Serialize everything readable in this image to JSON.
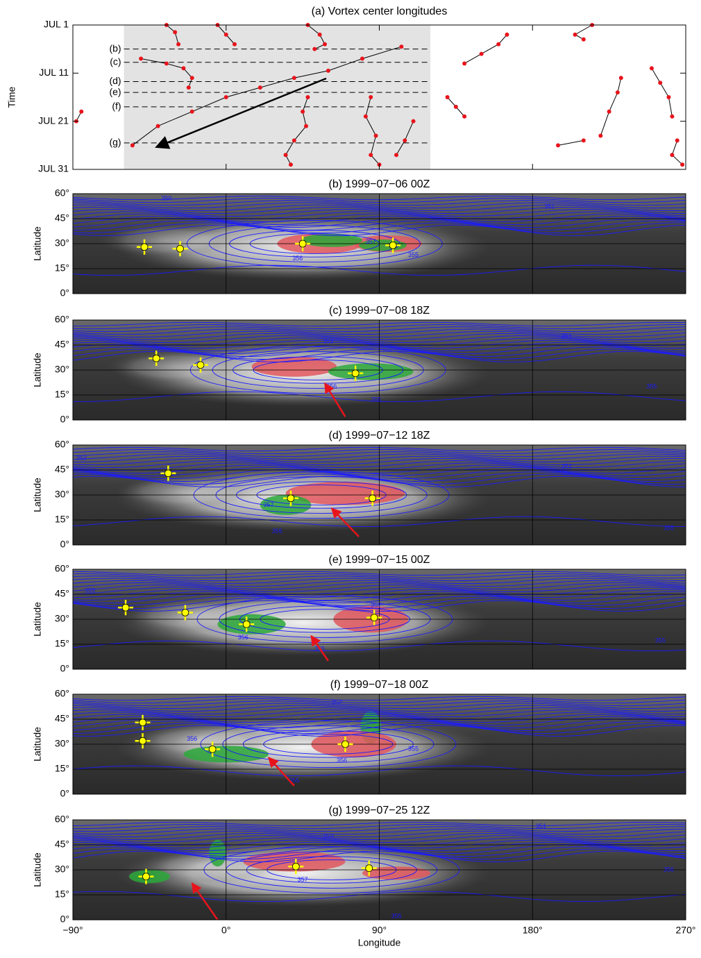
{
  "chart_data": [
    {
      "type": "scatter",
      "title": "(a) Vortex center longitudes",
      "y_label": "Time",
      "xlim": [
        -90,
        270
      ],
      "xticks": [
        -90,
        0,
        90,
        180,
        270
      ],
      "ylim": [
        31,
        1
      ],
      "yticks": [
        {
          "value": 1,
          "label": "JUL 1"
        },
        {
          "value": 11,
          "label": "JUL 11"
        },
        {
          "value": 21,
          "label": "JUL 21"
        },
        {
          "value": 31,
          "label": "JUL 31"
        }
      ],
      "shaded_range": [
        -60,
        120
      ],
      "color": "#e8141c",
      "line_color": "#000000",
      "annotations": [
        {
          "label": "(b)",
          "value": 6
        },
        {
          "label": "(c)",
          "value": 8.75
        },
        {
          "label": "(d)",
          "value": 12.75
        },
        {
          "label": "(e)",
          "value": 15
        },
        {
          "label": "(f)",
          "value": 18
        },
        {
          "label": "(g)",
          "value": 25.5
        }
      ],
      "tracks": [
        {
          "x": [
            103,
            80,
            60,
            40,
            20,
            0,
            -20,
            -40,
            -55
          ],
          "y": [
            5.5,
            8,
            10.5,
            12,
            14,
            16,
            19,
            22,
            26
          ]
        },
        {
          "x": [
            -50,
            -35,
            -25,
            -20,
            -22
          ],
          "y": [
            8,
            9,
            10,
            12,
            14
          ]
        },
        {
          "x": [
            -35,
            -30,
            -28
          ],
          "y": [
            1,
            2.5,
            5
          ]
        },
        {
          "x": [
            -5,
            0,
            5
          ],
          "y": [
            1,
            3,
            5
          ]
        },
        {
          "x": [
            48,
            55,
            58,
            52
          ],
          "y": [
            1,
            3,
            5,
            6
          ]
        },
        {
          "x": [
            48,
            45,
            47,
            40,
            35,
            38
          ],
          "y": [
            16,
            19,
            22,
            25,
            28,
            30
          ]
        },
        {
          "x": [
            85,
            82,
            88,
            85,
            90
          ],
          "y": [
            16,
            20,
            24,
            28,
            30
          ]
        },
        {
          "x": [
            100,
            105,
            110
          ],
          "y": [
            28,
            25,
            21
          ]
        },
        {
          "x": [
            140,
            150,
            160,
            165
          ],
          "y": [
            9,
            7,
            5,
            3
          ]
        },
        {
          "x": [
            130,
            135,
            140
          ],
          "y": [
            16,
            18,
            20
          ]
        },
        {
          "x": [
            220,
            225,
            230,
            232
          ],
          "y": [
            24,
            19,
            15,
            12
          ]
        },
        {
          "x": [
            250,
            255,
            260,
            262
          ],
          "y": [
            10,
            13,
            16,
            20
          ]
        },
        {
          "x": [
            265,
            262,
            268
          ],
          "y": [
            25,
            28,
            30
          ]
        },
        {
          "x": [
            -85,
            -88
          ],
          "y": [
            19,
            21
          ]
        },
        {
          "x": [
            195,
            210
          ],
          "y": [
            26,
            25
          ]
        },
        {
          "x": [
            210,
            205,
            215
          ],
          "y": [
            4,
            3,
            1
          ]
        }
      ]
    },
    {
      "type": "map",
      "title": "(b) 1999−07−06 00Z",
      "y_label": "Latitude",
      "xlim": [
        -90,
        270
      ],
      "xticks": [
        -90,
        0,
        90,
        180,
        270
      ],
      "ylim": [
        0,
        60
      ],
      "yticks": [
        {
          "value": 0,
          "label": "0°"
        },
        {
          "value": 15,
          "label": "15°"
        },
        {
          "value": 30,
          "label": "30°"
        },
        {
          "value": 45,
          "label": "45°"
        },
        {
          "value": 60,
          "label": "60°"
        }
      ],
      "markers": {
        "x": [
          -48,
          -27,
          45,
          98
        ],
        "y": [
          28,
          27,
          30,
          29
        ],
        "color": "#ffff00"
      },
      "contour_labels": [
        {
          "value": 350,
          "lon": -35,
          "lat": 57
        },
        {
          "value": 357,
          "lon": 85,
          "lat": 31
        },
        {
          "value": 356,
          "lon": 42,
          "lat": 21
        },
        {
          "value": 355,
          "lon": 110,
          "lat": 23
        },
        {
          "value": 351,
          "lon": 190,
          "lat": 52
        }
      ]
    },
    {
      "type": "map",
      "title": "(c) 1999−07−08 18Z",
      "y_label": "Latitude",
      "xlim": [
        -90,
        270
      ],
      "xticks": [
        -90,
        0,
        90,
        180,
        270
      ],
      "ylim": [
        0,
        60
      ],
      "yticks": [
        {
          "value": 0,
          "label": "0°"
        },
        {
          "value": 15,
          "label": "15°"
        },
        {
          "value": 30,
          "label": "30°"
        },
        {
          "value": 45,
          "label": "45°"
        },
        {
          "value": 60,
          "label": "60°"
        }
      ],
      "markers": {
        "x": [
          -41,
          -15,
          76
        ],
        "y": [
          37,
          33,
          28
        ],
        "color": "#ffff00"
      },
      "contour_labels": [
        {
          "value": 353,
          "lon": 60,
          "lat": 47
        },
        {
          "value": 356,
          "lon": 62,
          "lat": 20
        },
        {
          "value": 355,
          "lon": 88,
          "lat": 12
        },
        {
          "value": 351,
          "lon": 200,
          "lat": 50
        },
        {
          "value": 355,
          "lon": 250,
          "lat": 20
        }
      ]
    },
    {
      "type": "map",
      "title": "(d) 1999−07−12 18Z",
      "y_label": "Latitude",
      "xlim": [
        -90,
        270
      ],
      "xticks": [
        -90,
        0,
        90,
        180,
        270
      ],
      "ylim": [
        0,
        60
      ],
      "yticks": [
        {
          "value": 0,
          "label": "0°"
        },
        {
          "value": 15,
          "label": "15°"
        },
        {
          "value": 30,
          "label": "30°"
        },
        {
          "value": 45,
          "label": "45°"
        },
        {
          "value": 60,
          "label": "60°"
        }
      ],
      "markers": {
        "x": [
          -34,
          38,
          86
        ],
        "y": [
          43,
          28,
          28
        ],
        "color": "#ffff00"
      },
      "contour_labels": [
        {
          "value": 352,
          "lon": -85,
          "lat": 52
        },
        {
          "value": 357,
          "lon": 25,
          "lat": 24
        },
        {
          "value": 355,
          "lon": 30,
          "lat": 8
        },
        {
          "value": 351,
          "lon": 200,
          "lat": 47
        },
        {
          "value": 355,
          "lon": 260,
          "lat": 10
        }
      ]
    },
    {
      "type": "map",
      "title": "(e) 1999−07−15 00Z",
      "y_label": "Latitude",
      "xlim": [
        -90,
        270
      ],
      "xticks": [
        -90,
        0,
        90,
        180,
        270
      ],
      "ylim": [
        0,
        60
      ],
      "yticks": [
        {
          "value": 0,
          "label": "0°"
        },
        {
          "value": 15,
          "label": "15°"
        },
        {
          "value": 30,
          "label": "30°"
        },
        {
          "value": 45,
          "label": "45°"
        },
        {
          "value": 60,
          "label": "60°"
        }
      ],
      "markers": {
        "x": [
          -59,
          -24,
          12,
          87
        ],
        "y": [
          37,
          34,
          27,
          31
        ],
        "color": "#ffff00"
      },
      "contour_labels": [
        {
          "value": 353,
          "lon": -80,
          "lat": 47
        },
        {
          "value": 357,
          "lon": 88,
          "lat": 38
        },
        {
          "value": 356,
          "lon": 10,
          "lat": 19
        },
        {
          "value": 355,
          "lon": 55,
          "lat": 12
        },
        {
          "value": 355,
          "lon": 255,
          "lat": 17
        }
      ]
    },
    {
      "type": "map",
      "title": "(f) 1999−07−18 00Z",
      "y_label": "Latitude",
      "xlim": [
        -90,
        270
      ],
      "xticks": [
        -90,
        0,
        90,
        180,
        270
      ],
      "ylim": [
        0,
        60
      ],
      "yticks": [
        {
          "value": 0,
          "label": "0°"
        },
        {
          "value": 15,
          "label": "15°"
        },
        {
          "value": 30,
          "label": "30°"
        },
        {
          "value": 45,
          "label": "45°"
        },
        {
          "value": 60,
          "label": "60°"
        }
      ],
      "markers": {
        "x": [
          -49,
          -49,
          -8,
          70
        ],
        "y": [
          43,
          32,
          27,
          30
        ],
        "color": "#ffff00"
      },
      "contour_labels": [
        {
          "value": 356,
          "lon": -20,
          "lat": 33
        },
        {
          "value": 352,
          "lon": 65,
          "lat": 55
        },
        {
          "value": 356,
          "lon": 68,
          "lat": 20
        },
        {
          "value": 355,
          "lon": 40,
          "lat": 8
        },
        {
          "value": 355,
          "lon": 110,
          "lat": 27
        }
      ]
    },
    {
      "type": "map",
      "title": "(g) 1999−07−25 12Z",
      "y_label": "Latitude",
      "x_label": "Longitude",
      "xlim": [
        -90,
        270
      ],
      "xticks": [
        {
          "value": -90,
          "label": "−90°"
        },
        {
          "value": 0,
          "label": "0°"
        },
        {
          "value": 90,
          "label": "90°"
        },
        {
          "value": 180,
          "label": "180°"
        },
        {
          "value": 270,
          "label": "270°"
        }
      ],
      "ylim": [
        0,
        60
      ],
      "yticks": [
        {
          "value": 0,
          "label": "0°"
        },
        {
          "value": 15,
          "label": "15°"
        },
        {
          "value": 30,
          "label": "30°"
        },
        {
          "value": 45,
          "label": "45°"
        },
        {
          "value": 60,
          "label": "60°"
        }
      ],
      "markers": {
        "x": [
          -47,
          41,
          84
        ],
        "y": [
          26,
          32,
          31
        ],
        "color": "#ffff00"
      },
      "contour_labels": [
        {
          "value": 353,
          "lon": 60,
          "lat": 50
        },
        {
          "value": 357,
          "lon": 45,
          "lat": 24
        },
        {
          "value": 355,
          "lon": 100,
          "lat": 2
        },
        {
          "value": 351,
          "lon": 185,
          "lat": 56
        },
        {
          "value": 356,
          "lon": 260,
          "lat": 30
        }
      ]
    }
  ]
}
